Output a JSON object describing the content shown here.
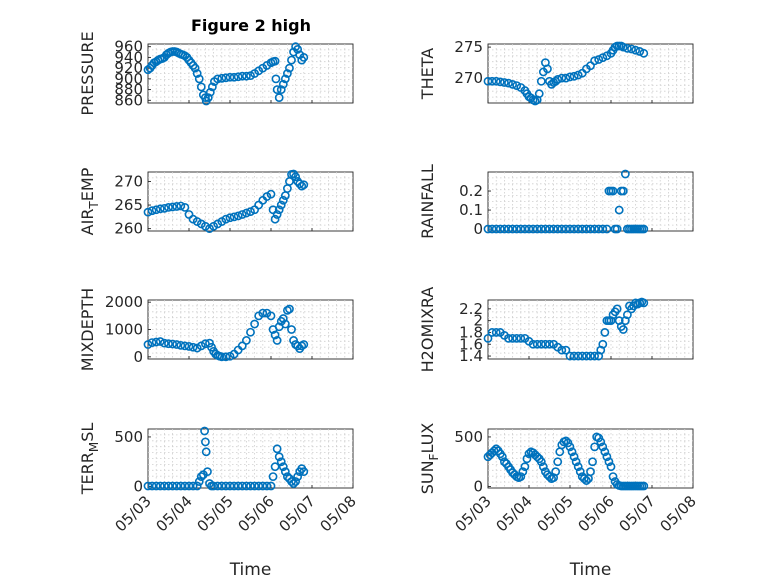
{
  "figure": {
    "title": "Figure 2 high"
  },
  "colors": {
    "marker": "#0072BD",
    "axis": "#262626",
    "grid": "#cfcfcf"
  },
  "chart_data": [
    {
      "type": "scatter",
      "id": "pressure",
      "ylabel": "PRESSURE",
      "ylabel_sub": null,
      "ylim": [
        855,
        965
      ],
      "yticks": [
        860,
        880,
        900,
        920,
        940,
        960
      ],
      "xlim": [
        0,
        5
      ],
      "xticklabels": [],
      "show_xticklabels": false,
      "grid": true,
      "x": [
        0.0,
        0.05,
        0.1,
        0.15,
        0.2,
        0.25,
        0.3,
        0.35,
        0.4,
        0.45,
        0.5,
        0.55,
        0.6,
        0.65,
        0.7,
        0.75,
        0.8,
        0.85,
        0.9,
        0.95,
        1.0,
        1.05,
        1.1,
        1.15,
        1.2,
        1.25,
        1.3,
        1.35,
        1.4,
        1.42,
        1.47,
        1.52,
        1.57,
        1.62,
        1.7,
        1.8,
        1.9,
        2.0,
        2.1,
        2.2,
        2.3,
        2.4,
        2.5,
        2.6,
        2.7,
        2.8,
        2.9,
        3.0,
        3.05,
        3.1,
        3.12,
        3.15,
        3.2,
        3.25,
        3.3,
        3.35,
        3.4,
        3.45,
        3.5,
        3.55,
        3.6,
        3.65,
        3.7,
        3.75,
        3.8
      ],
      "y": [
        917,
        920,
        925,
        930,
        932,
        935,
        937,
        938,
        940,
        945,
        948,
        950,
        951,
        951,
        950,
        948,
        946,
        945,
        943,
        940,
        935,
        930,
        925,
        920,
        910,
        900,
        885,
        870,
        865,
        858,
        865,
        875,
        885,
        895,
        900,
        901,
        902,
        903,
        903,
        904,
        905,
        905,
        906,
        910,
        915,
        920,
        925,
        930,
        932,
        933,
        900,
        880,
        865,
        880,
        890,
        900,
        910,
        920,
        935,
        950,
        960,
        955,
        945,
        935,
        940
      ]
    },
    {
      "type": "scatter",
      "id": "theta",
      "ylabel": "THETA",
      "ylabel_sub": null,
      "ylim": [
        266,
        275.5
      ],
      "yticks": [
        270,
        275
      ],
      "xlim": [
        0,
        5
      ],
      "xticklabels": [],
      "show_xticklabels": false,
      "grid": true,
      "x": [
        0.0,
        0.1,
        0.2,
        0.3,
        0.4,
        0.5,
        0.6,
        0.7,
        0.8,
        0.9,
        0.95,
        1.0,
        1.05,
        1.1,
        1.15,
        1.2,
        1.25,
        1.3,
        1.35,
        1.4,
        1.45,
        1.5,
        1.55,
        1.6,
        1.65,
        1.7,
        1.8,
        1.9,
        2.0,
        2.1,
        2.2,
        2.3,
        2.4,
        2.5,
        2.6,
        2.7,
        2.8,
        2.9,
        3.0,
        3.05,
        3.1,
        3.15,
        3.2,
        3.25,
        3.3,
        3.4,
        3.5,
        3.6,
        3.7,
        3.8
      ],
      "y": [
        269.5,
        269.5,
        269.5,
        269.4,
        269.3,
        269.2,
        269.0,
        268.8,
        268.5,
        268.0,
        267.5,
        267.0,
        266.8,
        266.5,
        266.3,
        266.5,
        267.5,
        269.5,
        271.0,
        272.5,
        271.5,
        269.5,
        269.0,
        269.3,
        269.5,
        269.8,
        270.0,
        270.0,
        270.2,
        270.3,
        270.5,
        270.8,
        271.5,
        272.0,
        272.8,
        273.0,
        273.3,
        273.6,
        274.0,
        274.5,
        275.0,
        275.2,
        275.3,
        275.2,
        275.0,
        274.8,
        274.7,
        274.5,
        274.3,
        274.0
      ]
    },
    {
      "type": "scatter",
      "id": "air_temp",
      "ylabel": "AIR",
      "ylabel_sub": "T",
      "ylabel_suffix": "EMP",
      "ylim": [
        259.5,
        272
      ],
      "yticks": [
        260,
        265,
        270
      ],
      "xlim": [
        0,
        5
      ],
      "xticklabels": [],
      "show_xticklabels": false,
      "grid": true,
      "x": [
        0.0,
        0.1,
        0.2,
        0.3,
        0.4,
        0.5,
        0.6,
        0.7,
        0.8,
        0.9,
        1.0,
        1.1,
        1.2,
        1.3,
        1.4,
        1.5,
        1.6,
        1.7,
        1.8,
        1.9,
        2.0,
        2.1,
        2.2,
        2.3,
        2.4,
        2.5,
        2.6,
        2.7,
        2.8,
        2.9,
        3.0,
        3.05,
        3.1,
        3.15,
        3.2,
        3.25,
        3.3,
        3.35,
        3.4,
        3.45,
        3.5,
        3.55,
        3.6,
        3.65,
        3.7,
        3.75,
        3.8
      ],
      "y": [
        263.5,
        263.8,
        264.0,
        264.2,
        264.3,
        264.5,
        264.6,
        264.7,
        264.8,
        264.5,
        263.0,
        262.0,
        261.5,
        261.0,
        260.5,
        260.0,
        260.5,
        261.0,
        261.5,
        262.0,
        262.3,
        262.5,
        262.7,
        263.0,
        263.3,
        263.6,
        264.0,
        265.0,
        266.0,
        266.8,
        267.3,
        264.0,
        262.0,
        263.0,
        264.0,
        265.0,
        266.0,
        267.0,
        268.5,
        270.0,
        271.5,
        272.0,
        271.0,
        270.0,
        269.5,
        269.0,
        269.3
      ]
    },
    {
      "type": "scatter",
      "id": "rainfall",
      "ylabel": "RAINFALL",
      "ylabel_sub": null,
      "ylim": [
        -0.01,
        0.3
      ],
      "yticks": [
        0,
        0.1,
        0.2
      ],
      "yticklabels": [
        "0",
        "0.1",
        "0.2"
      ],
      "xlim": [
        0,
        5
      ],
      "xticklabels": [],
      "show_xticklabels": false,
      "grid": true,
      "x": [
        0.0,
        0.1,
        0.2,
        0.3,
        0.4,
        0.5,
        0.6,
        0.7,
        0.8,
        0.9,
        1.0,
        1.1,
        1.2,
        1.3,
        1.4,
        1.5,
        1.6,
        1.7,
        1.8,
        1.9,
        2.0,
        2.1,
        2.2,
        2.3,
        2.4,
        2.5,
        2.6,
        2.7,
        2.8,
        2.9,
        2.95,
        3.0,
        3.05,
        3.1,
        3.15,
        3.2,
        3.25,
        3.3,
        3.35,
        3.4,
        3.45,
        3.5,
        3.55,
        3.6,
        3.65,
        3.7,
        3.75,
        3.8
      ],
      "y": [
        0,
        0,
        0,
        0,
        0,
        0,
        0,
        0,
        0,
        0,
        0,
        0,
        0,
        0,
        0,
        0,
        0,
        0,
        0,
        0,
        0,
        0,
        0,
        0,
        0,
        0,
        0,
        0,
        0,
        0,
        0.2,
        0.2,
        0.2,
        0,
        0,
        0.1,
        0.2,
        0.2,
        0.29,
        0,
        0,
        0,
        0,
        0,
        0,
        0,
        0,
        0
      ]
    },
    {
      "type": "scatter",
      "id": "mixdepth",
      "ylabel": "MIXDEPTH",
      "ylabel_sub": null,
      "ylim": [
        -80,
        2080
      ],
      "yticks": [
        0,
        1000,
        2000
      ],
      "xlim": [
        0,
        5
      ],
      "xticklabels": [],
      "show_xticklabels": false,
      "grid": true,
      "x": [
        0.0,
        0.1,
        0.2,
        0.3,
        0.4,
        0.5,
        0.6,
        0.7,
        0.8,
        0.9,
        1.0,
        1.1,
        1.2,
        1.3,
        1.4,
        1.5,
        1.55,
        1.6,
        1.65,
        1.7,
        1.75,
        1.8,
        1.9,
        2.0,
        2.1,
        2.2,
        2.3,
        2.4,
        2.5,
        2.6,
        2.7,
        2.8,
        2.9,
        3.0,
        3.05,
        3.1,
        3.15,
        3.2,
        3.25,
        3.3,
        3.35,
        3.4,
        3.45,
        3.5,
        3.55,
        3.6,
        3.65,
        3.7,
        3.75,
        3.8
      ],
      "y": [
        450,
        520,
        540,
        560,
        500,
        480,
        470,
        450,
        420,
        400,
        380,
        350,
        320,
        400,
        480,
        500,
        350,
        200,
        100,
        50,
        20,
        0,
        0,
        20,
        100,
        250,
        400,
        600,
        900,
        1200,
        1500,
        1600,
        1600,
        1500,
        1000,
        800,
        600,
        1100,
        1300,
        1400,
        1200,
        1700,
        1750,
        1000,
        600,
        450,
        400,
        300,
        400,
        450
      ]
    },
    {
      "type": "scatter",
      "id": "h2omixra",
      "ylabel": "H2OMIXRA",
      "ylabel_sub": null,
      "ylim": [
        1.35,
        2.35
      ],
      "yticks": [
        1.4,
        1.6,
        1.8,
        2,
        2.2
      ],
      "yticklabels": [
        "1.4",
        "1.6",
        "1.8",
        "2",
        "2.2"
      ],
      "xlim": [
        0,
        5
      ],
      "xticklabels": [],
      "show_xticklabels": false,
      "grid": true,
      "x": [
        0.0,
        0.1,
        0.2,
        0.3,
        0.4,
        0.5,
        0.6,
        0.7,
        0.8,
        0.9,
        1.0,
        1.1,
        1.2,
        1.3,
        1.4,
        1.5,
        1.6,
        1.7,
        1.8,
        1.9,
        2.0,
        2.1,
        2.2,
        2.3,
        2.4,
        2.5,
        2.6,
        2.7,
        2.75,
        2.8,
        2.85,
        2.9,
        2.95,
        3.0,
        3.05,
        3.1,
        3.15,
        3.2,
        3.25,
        3.3,
        3.35,
        3.4,
        3.45,
        3.5,
        3.55,
        3.6,
        3.65,
        3.7,
        3.75,
        3.8
      ],
      "y": [
        1.7,
        1.8,
        1.8,
        1.8,
        1.75,
        1.7,
        1.7,
        1.7,
        1.7,
        1.7,
        1.65,
        1.6,
        1.6,
        1.6,
        1.6,
        1.6,
        1.6,
        1.55,
        1.5,
        1.5,
        1.4,
        1.4,
        1.4,
        1.4,
        1.4,
        1.4,
        1.4,
        1.4,
        1.5,
        1.6,
        1.8,
        2.0,
        2.0,
        2.0,
        2.1,
        2.15,
        2.2,
        2.0,
        1.9,
        1.85,
        2.0,
        2.1,
        2.25,
        2.2,
        2.25,
        2.3,
        2.28,
        2.3,
        2.32,
        2.3
      ]
    },
    {
      "type": "scatter",
      "id": "terr_msl",
      "ylabel": "TERR",
      "ylabel_sub": "M",
      "ylabel_suffix": "SL",
      "ylim": [
        -15,
        580
      ],
      "yticks": [
        0,
        500
      ],
      "xlim": [
        0,
        5
      ],
      "xticks": [
        0,
        1,
        2,
        3,
        4,
        5
      ],
      "xticklabels": [
        "05/03",
        "05/04",
        "05/05",
        "05/06",
        "05/07",
        "05/08"
      ],
      "show_xticklabels": true,
      "xlabel": "Time",
      "grid": true,
      "x": [
        0.0,
        0.1,
        0.2,
        0.3,
        0.4,
        0.5,
        0.6,
        0.7,
        0.8,
        0.9,
        1.0,
        1.1,
        1.2,
        1.25,
        1.3,
        1.35,
        1.38,
        1.4,
        1.42,
        1.45,
        1.5,
        1.55,
        1.6,
        1.7,
        1.8,
        1.9,
        2.0,
        2.1,
        2.2,
        2.3,
        2.4,
        2.5,
        2.6,
        2.7,
        2.8,
        2.9,
        3.0,
        3.05,
        3.1,
        3.15,
        3.2,
        3.25,
        3.3,
        3.35,
        3.4,
        3.45,
        3.5,
        3.55,
        3.6,
        3.65,
        3.7,
        3.75,
        3.8
      ],
      "y": [
        0,
        0,
        0,
        0,
        0,
        0,
        0,
        0,
        0,
        0,
        0,
        0,
        0,
        50,
        100,
        120,
        570,
        450,
        350,
        150,
        30,
        0,
        0,
        0,
        0,
        0,
        0,
        0,
        0,
        0,
        0,
        0,
        0,
        0,
        0,
        0,
        0,
        100,
        200,
        380,
        300,
        250,
        200,
        150,
        100,
        80,
        50,
        30,
        50,
        100,
        150,
        180,
        150
      ]
    },
    {
      "type": "scatter",
      "id": "sun_flux",
      "ylabel": "SUN",
      "ylabel_sub": "F",
      "ylabel_suffix": "LUX",
      "ylim": [
        -15,
        580
      ],
      "yticks": [
        0,
        500
      ],
      "xlim": [
        0,
        5
      ],
      "xticks": [
        0,
        1,
        2,
        3,
        4,
        5
      ],
      "xticklabels": [
        "05/03",
        "05/04",
        "05/05",
        "05/06",
        "05/07",
        "05/08"
      ],
      "show_xticklabels": true,
      "xlabel": "Time",
      "grid": true,
      "x": [
        0.0,
        0.05,
        0.1,
        0.15,
        0.2,
        0.25,
        0.3,
        0.35,
        0.4,
        0.45,
        0.5,
        0.55,
        0.6,
        0.65,
        0.7,
        0.75,
        0.8,
        0.85,
        0.9,
        0.95,
        1.0,
        1.05,
        1.1,
        1.15,
        1.2,
        1.25,
        1.3,
        1.35,
        1.4,
        1.45,
        1.5,
        1.55,
        1.6,
        1.65,
        1.7,
        1.75,
        1.8,
        1.85,
        1.9,
        1.95,
        2.0,
        2.05,
        2.1,
        2.15,
        2.2,
        2.25,
        2.3,
        2.35,
        2.4,
        2.45,
        2.5,
        2.55,
        2.6,
        2.65,
        2.7,
        2.75,
        2.8,
        2.85,
        2.9,
        2.95,
        3.0,
        3.05,
        3.1,
        3.15,
        3.2,
        3.25,
        3.3,
        3.35,
        3.4,
        3.45,
        3.5,
        3.55,
        3.6,
        3.65,
        3.7,
        3.75,
        3.8
      ],
      "y": [
        300,
        320,
        340,
        360,
        380,
        360,
        330,
        300,
        250,
        230,
        200,
        170,
        140,
        120,
        100,
        90,
        100,
        150,
        200,
        280,
        330,
        350,
        340,
        320,
        300,
        280,
        250,
        200,
        150,
        120,
        100,
        80,
        90,
        150,
        250,
        350,
        420,
        450,
        460,
        440,
        400,
        350,
        300,
        250,
        200,
        150,
        100,
        80,
        60,
        80,
        150,
        250,
        400,
        500,
        490,
        450,
        400,
        350,
        300,
        250,
        200,
        100,
        50,
        20,
        10,
        5,
        0,
        0,
        0,
        0,
        0,
        0,
        0,
        0,
        0,
        0,
        0
      ]
    }
  ]
}
